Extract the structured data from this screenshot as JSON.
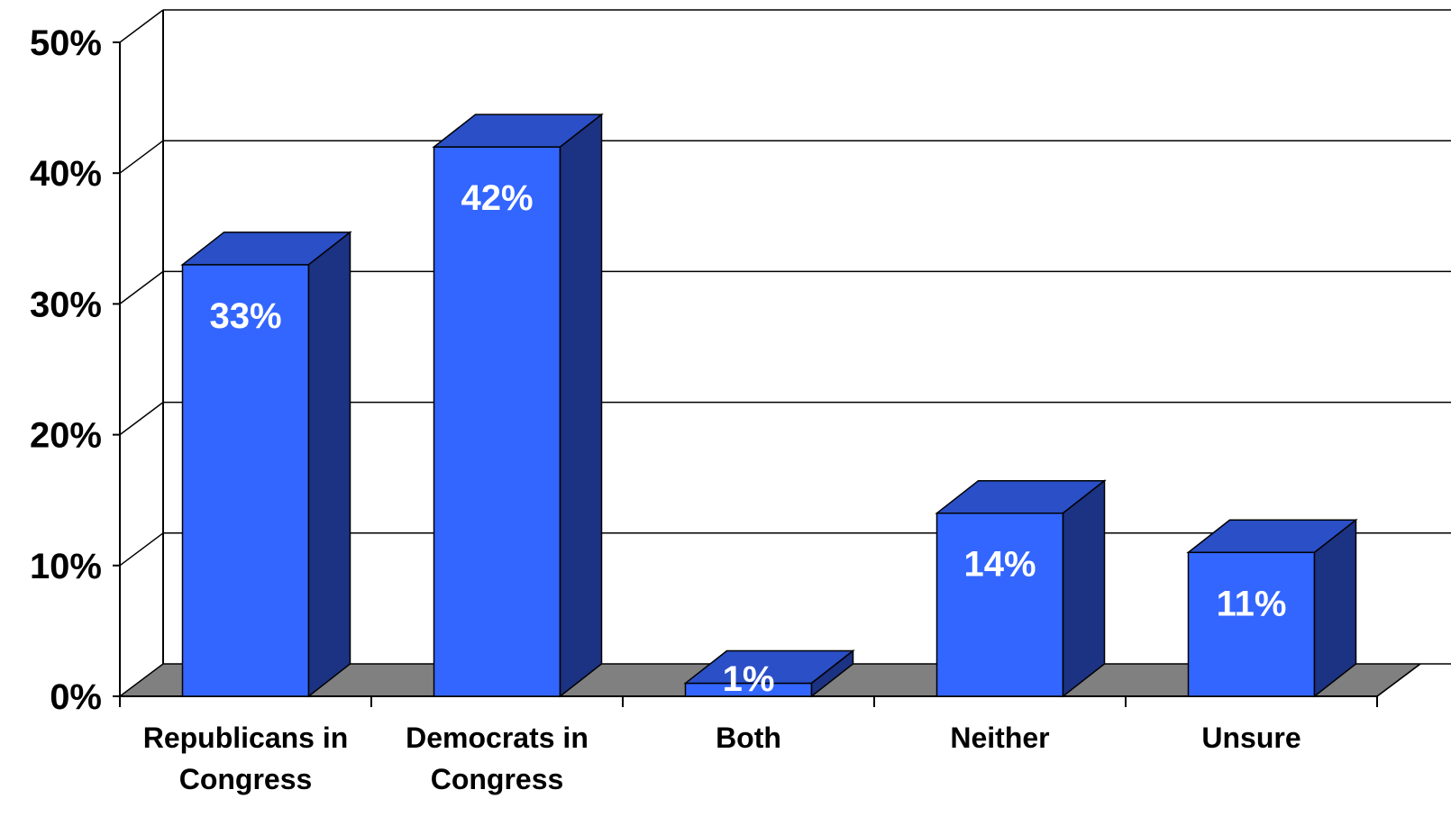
{
  "chart_data": {
    "type": "bar",
    "categories": [
      [
        "Republicans in",
        "Congress"
      ],
      [
        "Democrats in",
        "Congress"
      ],
      [
        "Both"
      ],
      [
        "Neither"
      ],
      [
        "Unsure"
      ]
    ],
    "values": [
      33,
      42,
      1,
      14,
      11
    ],
    "data_labels": [
      "33%",
      "42%",
      "1%",
      "14%",
      "11%"
    ],
    "ylim": [
      0,
      50
    ],
    "yticks": [
      0,
      10,
      20,
      30,
      40,
      50
    ],
    "ytick_labels": [
      "0%",
      "10%",
      "20%",
      "30%",
      "40%",
      "50%"
    ],
    "grid": true,
    "legend": "none",
    "style": "3d",
    "colors": {
      "bar_front": "#3366ff",
      "bar_top": "#2a4fc6",
      "bar_side": "#1c3282",
      "floor": "#808080",
      "gridline": "#000000",
      "data_label": "#ffffff"
    }
  }
}
